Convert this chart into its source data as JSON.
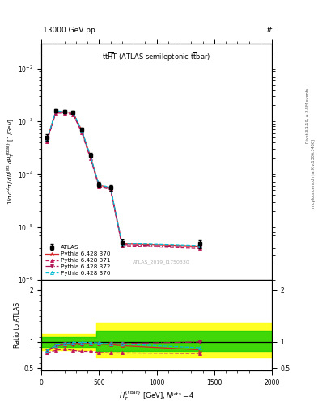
{
  "title_top": "13000 GeV pp",
  "title_top_right": "tt",
  "watermark": "ATLAS_2019_I1750330",
  "right_label_top": "Rivet 3.1.10, ≥ 2.5M events",
  "right_label_bottom": "mcplots.cern.ch [arXiv:1306.3436]",
  "ylabel_ratio": "Ratio to ATLAS",
  "x_data": [
    50,
    125,
    200,
    275,
    350,
    425,
    500,
    600,
    700,
    1375
  ],
  "atlas_y": [
    0.0005,
    0.0016,
    0.00155,
    0.0015,
    0.0007,
    0.00023,
    6.5e-05,
    5.5e-05,
    5e-06,
    4.8e-06
  ],
  "atlas_yerr_lo": [
    7e-05,
    0.0001,
    0.0001,
    9e-05,
    5e-05,
    2e-05,
    7e-06,
    7e-06,
    8e-07,
    8e-07
  ],
  "atlas_yerr_hi": [
    7e-05,
    0.0001,
    0.0001,
    9e-05,
    5e-05,
    2e-05,
    7e-06,
    7e-06,
    8e-07,
    8e-07
  ],
  "py370_y": [
    0.00045,
    0.00155,
    0.00152,
    0.00147,
    0.00068,
    0.00022,
    6.2e-05,
    5.5e-05,
    4.8e-06,
    4.3e-06
  ],
  "py371_y": [
    0.00042,
    0.00145,
    0.00142,
    0.00135,
    0.00062,
    0.0002,
    5.8e-05,
    5.1e-05,
    4.4e-06,
    3.9e-06
  ],
  "py372_y": [
    0.00043,
    0.0015,
    0.00147,
    0.0014,
    0.00065,
    0.00021,
    6e-05,
    5.3e-05,
    4.6e-06,
    4.1e-06
  ],
  "py376_y": [
    0.00046,
    0.00158,
    0.00154,
    0.00149,
    0.00069,
    0.000225,
    6.3e-05,
    5.6e-05,
    4.9e-06,
    4.4e-06
  ],
  "ratio_x": [
    50,
    125,
    200,
    275,
    350,
    425,
    500,
    600,
    700,
    1375
  ],
  "ratio_370": [
    0.82,
    0.92,
    0.95,
    0.97,
    0.97,
    0.97,
    0.96,
    0.95,
    0.93,
    0.85
  ],
  "ratio_371": [
    0.79,
    0.84,
    0.87,
    0.84,
    0.82,
    0.82,
    0.8,
    0.79,
    0.79,
    0.78
  ],
  "ratio_372": [
    0.84,
    0.93,
    0.96,
    0.95,
    0.95,
    0.96,
    0.96,
    0.96,
    0.97,
    1.0
  ],
  "ratio_376": [
    0.84,
    0.93,
    0.97,
    0.99,
    0.99,
    0.99,
    0.98,
    0.96,
    0.96,
    0.89
  ],
  "color_370": "#d62728",
  "color_371": "#c2185b",
  "color_372": "#ad1457",
  "color_376": "#00bcd4",
  "color_atlas": "black",
  "ylim_main": [
    1e-06,
    0.03
  ],
  "ylim_ratio": [
    0.45,
    2.2
  ],
  "xlim": [
    0,
    2000
  ]
}
